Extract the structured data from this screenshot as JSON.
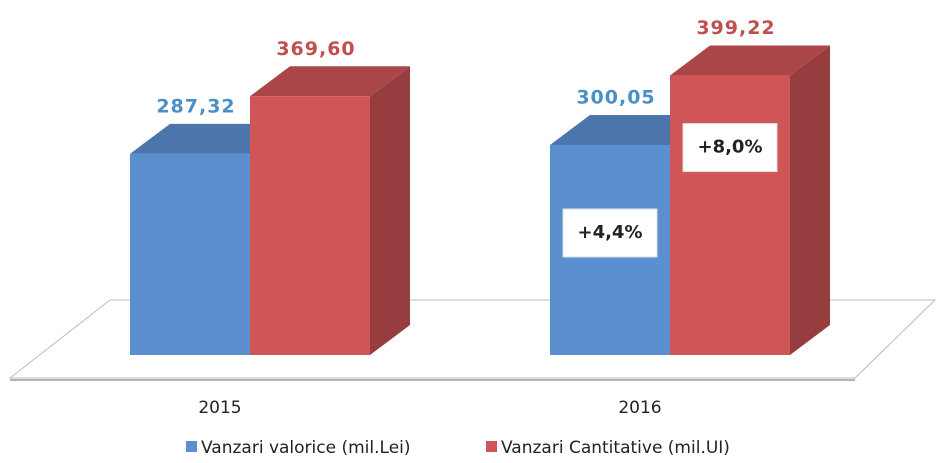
{
  "chart_data": {
    "type": "bar3d",
    "categories": [
      "2015",
      "2016"
    ],
    "series": [
      {
        "name": "Vanzari valorice (mil.Lei)",
        "color": "#5b8fd0",
        "values": [
          287.32,
          300.05
        ],
        "value_labels": [
          "287,32",
          "300,05"
        ],
        "label_color": "#4a90c8"
      },
      {
        "name": "Vanzari Cantitative (mil.UI)",
        "color": "#cf5557",
        "values": [
          369.6,
          399.22
        ],
        "value_labels": [
          "369,60",
          "399,22"
        ],
        "label_color": "#c0504d"
      }
    ],
    "annotations": [
      {
        "text": "+4,4%",
        "series": 0,
        "category": 1
      },
      {
        "text": "+8,0%",
        "series": 1,
        "category": 1
      }
    ]
  }
}
